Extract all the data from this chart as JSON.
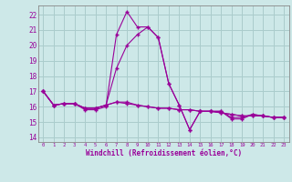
{
  "xlabel": "Windchill (Refroidissement éolien,°C)",
  "background_color": "#cde8e8",
  "grid_color": "#aacccc",
  "line_color": "#990099",
  "xlim": [
    -0.5,
    23.5
  ],
  "ylim": [
    13.7,
    22.6
  ],
  "yticks": [
    14,
    15,
    16,
    17,
    18,
    19,
    20,
    21,
    22
  ],
  "xticks": [
    0,
    1,
    2,
    3,
    4,
    5,
    6,
    7,
    8,
    9,
    10,
    11,
    12,
    13,
    14,
    15,
    16,
    17,
    18,
    19,
    20,
    21,
    22,
    23
  ],
  "series": [
    [
      17.0,
      16.1,
      16.2,
      16.2,
      15.8,
      15.8,
      16.0,
      20.7,
      22.2,
      21.2,
      21.2,
      20.5,
      17.5,
      16.1,
      14.5,
      15.7,
      15.7,
      15.7,
      15.2,
      15.2,
      15.5,
      15.4,
      15.3,
      15.3
    ],
    [
      17.0,
      16.1,
      16.2,
      16.2,
      15.9,
      15.9,
      16.1,
      18.5,
      20.0,
      20.7,
      21.2,
      20.5,
      17.5,
      16.1,
      14.5,
      15.7,
      15.7,
      15.7,
      15.3,
      15.3,
      15.5,
      15.4,
      15.3,
      15.3
    ],
    [
      17.0,
      16.1,
      16.2,
      16.2,
      15.9,
      15.9,
      16.1,
      16.3,
      16.3,
      16.1,
      16.0,
      15.9,
      15.9,
      15.8,
      15.8,
      15.7,
      15.7,
      15.6,
      15.5,
      15.4,
      15.4,
      15.4,
      15.3,
      15.3
    ],
    [
      17.0,
      16.1,
      16.2,
      16.2,
      15.9,
      15.9,
      16.1,
      16.3,
      16.2,
      16.1,
      16.0,
      15.9,
      15.9,
      15.8,
      15.8,
      15.7,
      15.7,
      15.6,
      15.5,
      15.4,
      15.4,
      15.4,
      15.3,
      15.3
    ]
  ]
}
